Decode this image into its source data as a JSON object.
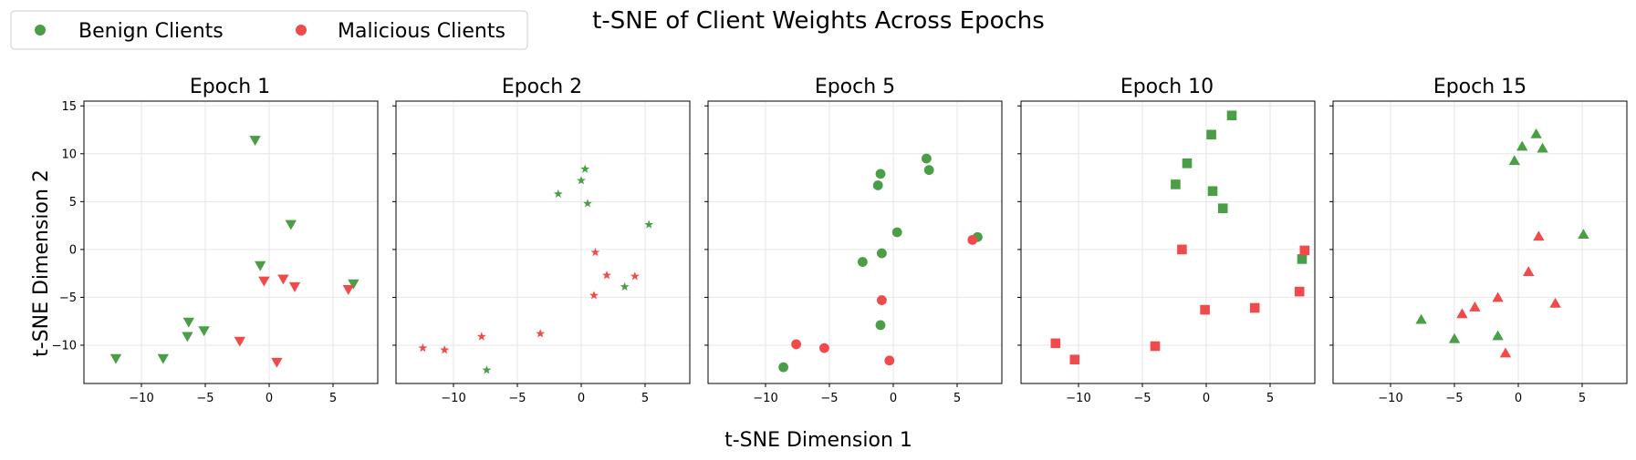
{
  "title": "t-SNE of Client Weights Across Epochs",
  "xlabel": "t-SNE Dimension 1",
  "ylabel": "t-SNE Dimension 2",
  "legend": [
    {
      "label": "Benign Clients",
      "color": "#4a9e45"
    },
    {
      "label": "Malicious Clients",
      "color": "#f04a4a"
    }
  ],
  "colors": {
    "benign": "#4a9e45",
    "malicious": "#f04a4a",
    "grid": "#e6e6e6"
  },
  "chart_data": {
    "type": "scatter",
    "xlim": [
      -14.5,
      8.5
    ],
    "ylim": [
      -14,
      15.5
    ],
    "xticks": [
      -10,
      -5,
      0,
      5
    ],
    "yticks": [
      -10,
      -5,
      0,
      5,
      10,
      15
    ],
    "xtick_labels": [
      "−10",
      "−5",
      "0",
      "5"
    ],
    "ytick_labels": [
      "−10",
      "−5",
      "0",
      "5",
      "10",
      "15"
    ],
    "grid": true,
    "legend_position": "top-left",
    "panels": [
      {
        "title": "Epoch 1",
        "marker": "triangle-down",
        "benign": [
          [
            -12,
            -11.4
          ],
          [
            -8.3,
            -11.4
          ],
          [
            -6.3,
            -7.6
          ],
          [
            -6.4,
            -9.1
          ],
          [
            -5.1,
            -8.5
          ],
          [
            -1.1,
            11.4
          ],
          [
            -0.7,
            -1.7
          ],
          [
            1.7,
            2.6
          ],
          [
            6.6,
            -3.6
          ]
        ],
        "malicious": [
          [
            -2.3,
            -9.6
          ],
          [
            -0.4,
            -3.3
          ],
          [
            0.6,
            -11.8
          ],
          [
            1.1,
            -3.1
          ],
          [
            2.0,
            -3.9
          ],
          [
            6.2,
            -4.2
          ]
        ]
      },
      {
        "title": "Epoch 2",
        "marker": "star",
        "benign": [
          [
            -7.4,
            -12.6
          ],
          [
            -1.8,
            5.8
          ],
          [
            0.0,
            7.2
          ],
          [
            0.3,
            8.4
          ],
          [
            0.5,
            4.8
          ],
          [
            3.4,
            -3.9
          ],
          [
            5.3,
            2.6
          ]
        ],
        "malicious": [
          [
            -12.4,
            -10.3
          ],
          [
            -10.7,
            -10.5
          ],
          [
            -7.8,
            -9.1
          ],
          [
            -3.2,
            -8.8
          ],
          [
            1.0,
            -4.8
          ],
          [
            1.1,
            -0.3
          ],
          [
            2.0,
            -2.7
          ],
          [
            4.2,
            -2.8
          ]
        ]
      },
      {
        "title": "Epoch 5",
        "marker": "circle",
        "benign": [
          [
            -8.6,
            -12.3
          ],
          [
            -2.4,
            -1.3
          ],
          [
            -1.2,
            6.7
          ],
          [
            -1.0,
            7.9
          ],
          [
            -0.9,
            -0.4
          ],
          [
            -1.0,
            -7.9
          ],
          [
            0.3,
            1.8
          ],
          [
            2.6,
            9.5
          ],
          [
            2.8,
            8.3
          ],
          [
            6.6,
            1.3
          ]
        ],
        "malicious": [
          [
            -7.6,
            -9.9
          ],
          [
            -5.4,
            -10.3
          ],
          [
            -0.9,
            -5.3
          ],
          [
            -0.3,
            -11.6
          ],
          [
            6.2,
            1.0
          ]
        ]
      },
      {
        "title": "Epoch 10",
        "marker": "square",
        "benign": [
          [
            -2.4,
            6.8
          ],
          [
            -1.5,
            9.0
          ],
          [
            0.4,
            12.0
          ],
          [
            0.5,
            6.1
          ],
          [
            1.3,
            4.3
          ],
          [
            2.0,
            14.0
          ],
          [
            7.5,
            -1.0
          ]
        ],
        "malicious": [
          [
            -11.8,
            -9.8
          ],
          [
            -10.3,
            -11.5
          ],
          [
            -4.0,
            -10.1
          ],
          [
            -1.9,
            0.0
          ],
          [
            -0.1,
            -6.3
          ],
          [
            3.8,
            -6.1
          ],
          [
            7.3,
            -4.4
          ],
          [
            7.7,
            -0.1
          ]
        ]
      },
      {
        "title": "Epoch 15",
        "marker": "triangle-up",
        "benign": [
          [
            -7.6,
            -7.3
          ],
          [
            -5.0,
            -9.3
          ],
          [
            -1.6,
            -9.0
          ],
          [
            -0.3,
            9.3
          ],
          [
            0.3,
            10.8
          ],
          [
            1.4,
            12.1
          ],
          [
            1.9,
            10.6
          ],
          [
            5.1,
            1.6
          ]
        ],
        "malicious": [
          [
            -4.4,
            -6.7
          ],
          [
            -3.4,
            -6.0
          ],
          [
            -1.6,
            -5.0
          ],
          [
            -1.0,
            -10.8
          ],
          [
            0.8,
            -2.3
          ],
          [
            1.6,
            1.4
          ],
          [
            2.9,
            -5.6
          ]
        ]
      }
    ]
  }
}
